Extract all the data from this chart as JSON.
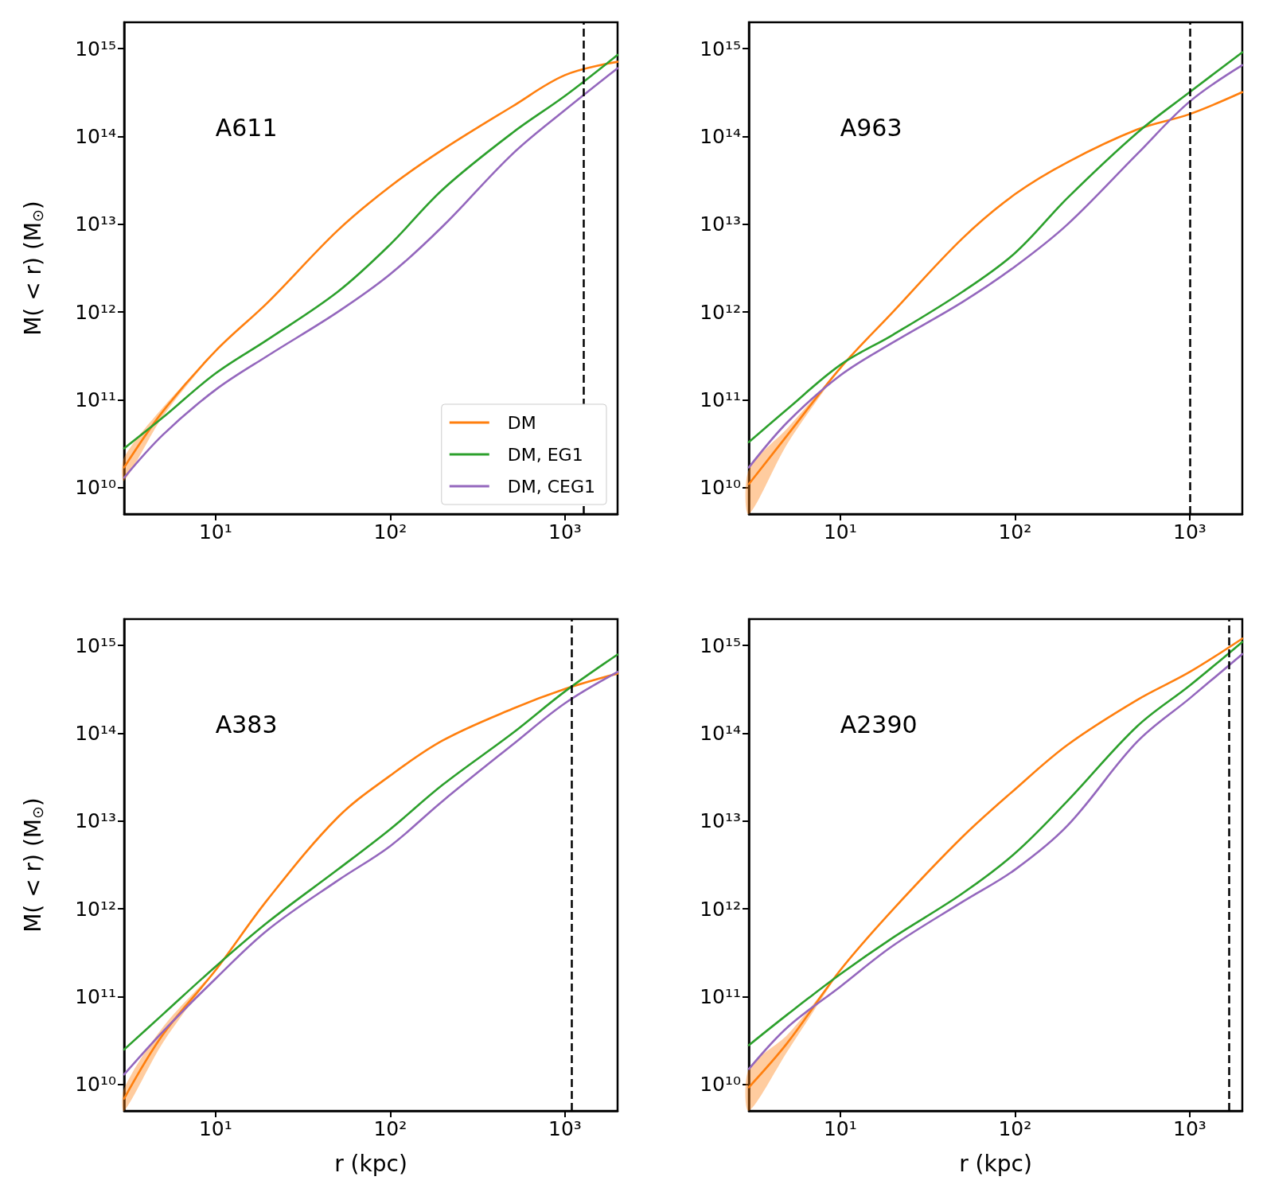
{
  "chart_data": [
    {
      "type": "line",
      "annotations": [
        "A611"
      ],
      "ylabel": "M( < r) (M$_{⊙}$)",
      "x": [
        3,
        5,
        10,
        20,
        50,
        100,
        200,
        500,
        1000,
        2000
      ],
      "log": "xy",
      "grid": false,
      "marker": "none",
      "line_style": "solid",
      "legend": "bottom right",
      "xlim": [
        3,
        2000
      ],
      "ylim": [
        5000000000.0,
        2000000000000000.0
      ],
      "xticks": [
        {
          "value": 10,
          "label": "10¹"
        },
        {
          "value": 100,
          "label": "10²"
        },
        {
          "value": 1000,
          "label": "10³"
        }
      ],
      "yticks": [
        {
          "value": 10000000000.0,
          "label": "10¹⁰"
        },
        {
          "value": 100000000000.0,
          "label": "10¹¹"
        },
        {
          "value": 1000000000000.0,
          "label": "10¹²"
        },
        {
          "value": 10000000000000.0,
          "label": "10¹³"
        },
        {
          "value": 100000000000000.0,
          "label": "10¹⁴"
        },
        {
          "value": 1000000000000000.0,
          "label": "10¹⁵"
        }
      ],
      "ref_lines": [
        {
          "axis": "x",
          "value": 1280,
          "color": "#000000",
          "line_style": "dashed"
        }
      ],
      "series": [
        {
          "name": "DM",
          "color": "#ff7f0e",
          "values": [
            17000000000.0,
            74000000000.0,
            360000000000.0,
            1300000000000.0,
            8500000000000.0,
            27000000000000.0,
            71000000000000.0,
            220000000000000.0,
            500000000000000.0,
            710000000000000.0
          ],
          "lower": [
            12000000000.0,
            65000000000.0,
            360000000000.0,
            null,
            null,
            null,
            null,
            null,
            null,
            null
          ],
          "upper": [
            22000000000.0,
            82000000000.0,
            360000000000.0,
            null,
            null,
            null,
            null,
            null,
            null,
            null
          ]
        },
        {
          "name": "DM, EG1",
          "color": "#2ca02c",
          "values": [
            28000000000.0,
            63000000000.0,
            200000000000.0,
            490000000000.0,
            1700000000000.0,
            5900000000000.0,
            25000000000000.0,
            110000000000000.0,
            290000000000000.0,
            850000000000000.0
          ]
        },
        {
          "name": "DM, CEG1",
          "color": "#9467bd",
          "values": [
            13000000000.0,
            40000000000.0,
            130000000000.0,
            320000000000.0,
            1000000000000.0,
            2700000000000.0,
            9500000000000.0,
            63000000000000.0,
            200000000000000.0,
            600000000000000.0
          ]
        }
      ]
    },
    {
      "type": "line",
      "annotations": [
        "A963"
      ],
      "x": [
        3,
        5,
        10,
        20,
        50,
        100,
        200,
        500,
        1000,
        2000
      ],
      "log": "xy",
      "grid": false,
      "marker": "none",
      "line_style": "solid",
      "legend": false,
      "xlim": [
        3,
        2000
      ],
      "ylim": [
        5000000000.0,
        2000000000000000.0
      ],
      "xticks": [
        {
          "value": 10,
          "label": "10¹"
        },
        {
          "value": 100,
          "label": "10²"
        },
        {
          "value": 1000,
          "label": "10³"
        }
      ],
      "yticks": [
        {
          "value": 10000000000.0,
          "label": "10¹⁰"
        },
        {
          "value": 100000000000.0,
          "label": "10¹¹"
        },
        {
          "value": 1000000000000.0,
          "label": "10¹²"
        },
        {
          "value": 10000000000000.0,
          "label": "10¹³"
        },
        {
          "value": 100000000000000.0,
          "label": "10¹⁴"
        },
        {
          "value": 1000000000000000.0,
          "label": "10¹⁵"
        }
      ],
      "ref_lines": [
        {
          "axis": "x",
          "value": 1000,
          "color": "#000000",
          "line_style": "dashed"
        }
      ],
      "series": [
        {
          "color": "#ff7f0e",
          "values": [
            11000000000.0,
            40000000000.0,
            230000000000.0,
            1000000000000.0,
            6900000000000.0,
            22000000000000.0,
            51000000000000.0,
            120000000000000.0,
            180000000000000.0,
            320000000000000.0
          ],
          "lower": [
            5000000000.0,
            32000000000.0,
            230000000000.0,
            null,
            null,
            null,
            null,
            null,
            null,
            null
          ],
          "upper": [
            16000000000.0,
            48000000000.0,
            230000000000.0,
            null,
            null,
            null,
            null,
            null,
            null,
            null
          ]
        },
        {
          "color": "#2ca02c",
          "values": [
            33000000000.0,
            79000000000.0,
            250000000000.0,
            550000000000.0,
            1700000000000.0,
            4700000000000.0,
            20000000000000.0,
            110000000000000.0,
            320000000000000.0,
            910000000000000.0
          ]
        },
        {
          "color": "#9467bd",
          "values": [
            17000000000.0,
            56000000000.0,
            190000000000.0,
            450000000000.0,
            1300000000000.0,
            3300000000000.0,
            10000000000000.0,
            63000000000000.0,
            250000000000000.0,
            650000000000000.0
          ]
        }
      ]
    },
    {
      "type": "line",
      "annotations": [
        "A383"
      ],
      "xlabel": "r (kpc)",
      "ylabel": "M( < r) (M$_{⊙}$)",
      "x": [
        3,
        5,
        10,
        20,
        50,
        100,
        200,
        500,
        1000,
        2000
      ],
      "log": "xy",
      "grid": false,
      "marker": "none",
      "line_style": "solid",
      "legend": false,
      "xlim": [
        3,
        2000
      ],
      "ylim": [
        5000000000.0,
        2000000000000000.0
      ],
      "xticks": [
        {
          "value": 10,
          "label": "10¹"
        },
        {
          "value": 100,
          "label": "10²"
        },
        {
          "value": 1000,
          "label": "10³"
        }
      ],
      "yticks": [
        {
          "value": 10000000000.0,
          "label": "10¹⁰"
        },
        {
          "value": 100000000000.0,
          "label": "10¹¹"
        },
        {
          "value": 1000000000000.0,
          "label": "10¹²"
        },
        {
          "value": 10000000000000.0,
          "label": "10¹³"
        },
        {
          "value": 100000000000000.0,
          "label": "10¹⁴"
        },
        {
          "value": 1000000000000000.0,
          "label": "10¹⁵"
        }
      ],
      "ref_lines": [
        {
          "axis": "x",
          "value": 1090,
          "color": "#000000",
          "line_style": "dashed"
        }
      ],
      "series": [
        {
          "color": "#ff7f0e",
          "values": [
            6900000000.0,
            37000000000.0,
            200000000000.0,
            1300000000000.0,
            11000000000000.0,
            33000000000000.0,
            83000000000000.0,
            190000000000000.0,
            320000000000000.0,
            480000000000000.0
          ],
          "lower": [
            5000000000.0,
            30000000000.0,
            200000000000.0,
            null,
            null,
            null,
            null,
            null,
            null,
            null
          ],
          "upper": [
            9000000000.0,
            45000000000.0,
            200000000000.0,
            null,
            null,
            null,
            null,
            null,
            null,
            null
          ]
        },
        {
          "color": "#2ca02c",
          "values": [
            25000000000.0,
            63000000000.0,
            220000000000.0,
            710000000000.0,
            2800000000000.0,
            8100000000000.0,
            26000000000000.0,
            100000000000000.0,
            300000000000000.0,
            790000000000000.0
          ]
        },
        {
          "color": "#9467bd",
          "values": [
            13000000000.0,
            40000000000.0,
            160000000000.0,
            580000000000.0,
            2100000000000.0,
            5200000000000.0,
            17000000000000.0,
            74000000000000.0,
            220000000000000.0,
            500000000000000.0
          ]
        }
      ]
    },
    {
      "type": "line",
      "annotations": [
        "A2390"
      ],
      "xlabel": "r (kpc)",
      "x": [
        3,
        5,
        10,
        20,
        50,
        100,
        200,
        500,
        1000,
        2000
      ],
      "log": "xy",
      "grid": false,
      "marker": "none",
      "line_style": "solid",
      "legend": false,
      "xlim": [
        3,
        2000
      ],
      "ylim": [
        5000000000.0,
        2000000000000000.0
      ],
      "xticks": [
        {
          "value": 10,
          "label": "10¹"
        },
        {
          "value": 100,
          "label": "10²"
        },
        {
          "value": 1000,
          "label": "10³"
        }
      ],
      "yticks": [
        {
          "value": 10000000000.0,
          "label": "10¹⁰"
        },
        {
          "value": 100000000000.0,
          "label": "10¹¹"
        },
        {
          "value": 1000000000000.0,
          "label": "10¹²"
        },
        {
          "value": 10000000000000.0,
          "label": "10¹³"
        },
        {
          "value": 100000000000000.0,
          "label": "10¹⁴"
        },
        {
          "value": 1000000000000000.0,
          "label": "10¹⁵"
        }
      ],
      "ref_lines": [
        {
          "axis": "x",
          "value": 1670,
          "color": "#000000",
          "line_style": "dashed"
        }
      ],
      "series": [
        {
          "color": "#ff7f0e",
          "values": [
            9300000000.0,
            30000000000.0,
            200000000000.0,
            980000000000.0,
            6600000000000.0,
            23000000000000.0,
            74000000000000.0,
            240000000000000.0,
            500000000000000.0,
            1200000000000000.0
          ],
          "lower": [
            5000000000.0,
            24000000000.0,
            200000000000.0,
            null,
            null,
            null,
            null,
            null,
            null,
            null
          ],
          "upper": [
            15000000000.0,
            37000000000.0,
            200000000000.0,
            null,
            null,
            null,
            null,
            null,
            null,
            null
          ]
        },
        {
          "color": "#2ca02c",
          "values": [
            28000000000.0,
            63000000000.0,
            180000000000.0,
            470000000000.0,
            1500000000000.0,
            4300000000000.0,
            17000000000000.0,
            120000000000000.0,
            350000000000000.0,
            1100000000000000.0
          ]
        },
        {
          "color": "#9467bd",
          "values": [
            15000000000.0,
            45000000000.0,
            130000000000.0,
            380000000000.0,
            1200000000000.0,
            2800000000000.0,
            8900000000000.0,
            80000000000000.0,
            250000000000000.0,
            800000000000000.0
          ]
        }
      ]
    }
  ]
}
